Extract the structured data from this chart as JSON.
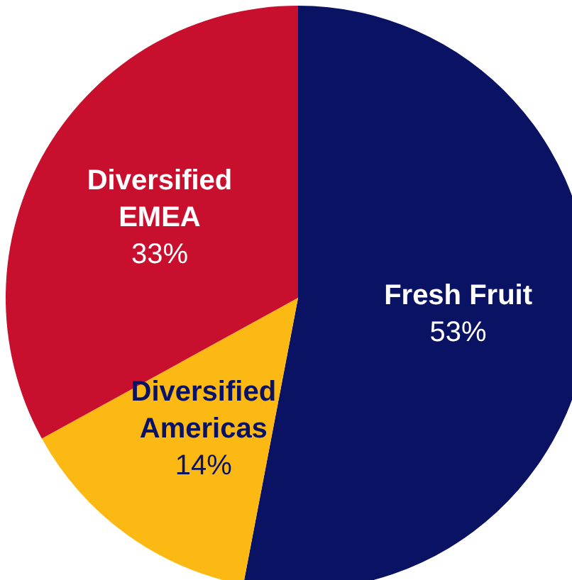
{
  "chart_data": {
    "type": "pie",
    "categories": [
      "Fresh Fruit",
      "Diversified Americas",
      "Diversified EMEA"
    ],
    "values": [
      53,
      14,
      33
    ],
    "colors": [
      "#0a1264",
      "#fdb913",
      "#c8102e"
    ],
    "value_labels": [
      "53%",
      "14%",
      "33%"
    ]
  }
}
